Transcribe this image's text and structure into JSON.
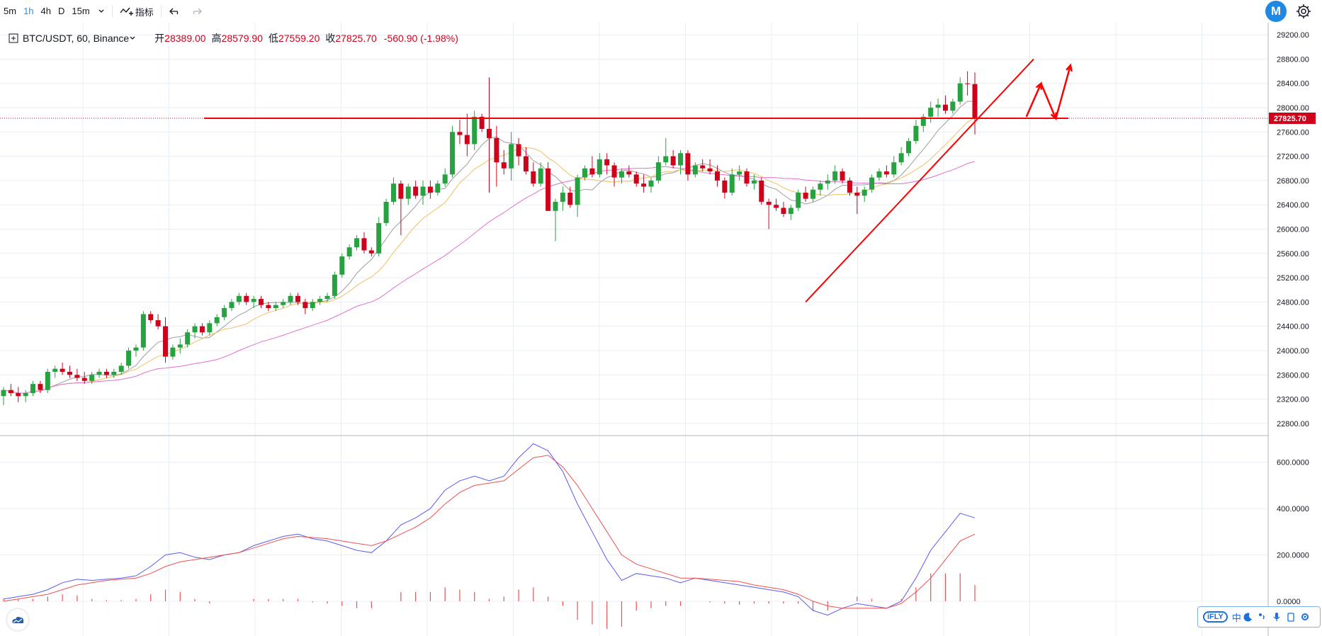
{
  "toolbar": {
    "timeframes": [
      "5m",
      "1h",
      "4h",
      "D",
      "15m"
    ],
    "active_timeframe": "1h",
    "chevron": "chevron-down-icon",
    "indicator_label": "指标",
    "undo": "undo-icon",
    "redo": "redo-icon",
    "settings": "gear-icon"
  },
  "logo_letter": "M",
  "legend": {
    "symbol": "BTC/USDT, 60, Binance",
    "open_label": "开",
    "open": "28389.00",
    "high_label": "高",
    "high": "28579.90",
    "low_label": "低",
    "low": "27559.20",
    "close_label": "收",
    "close": "27825.70",
    "change": "-560.90 (-1.98%)"
  },
  "ifly": {
    "logo": "iFLY",
    "lang": "中"
  },
  "colors": {
    "up": "#26a240",
    "down": "#d0021b",
    "ma_fast": "#f0c060",
    "ma_slow": "#e070d0",
    "ma_gray": "#9e9e9e",
    "macd_line": "#5b5bf0",
    "signal_line": "#f05050",
    "drawing": "#ff0000",
    "grid": "#e8eef5"
  },
  "chart_data": [
    {
      "type": "candlestick",
      "title": "BTC/USDT, 60, Binance",
      "ylim": [
        22600,
        29400
      ],
      "y_ticks": [
        "29200.00",
        "28800.00",
        "28400.00",
        "28000.00",
        "27600.00",
        "27200.00",
        "26800.00",
        "26400.00",
        "26000.00",
        "25600.00",
        "25200.00",
        "24800.00",
        "24400.00",
        "24000.00",
        "23600.00",
        "23200.00",
        "22800.00"
      ],
      "last_price": "27825.70",
      "horizontal_line": 27825.7,
      "trendline": [
        [
          109,
          24800
        ],
        [
          140,
          28800
        ]
      ],
      "projection_arrows": [
        [
          [
            139,
            27850
          ],
          [
            141,
            28400
          ],
          [
            143,
            27820
          ],
          [
            145,
            28700
          ]
        ]
      ],
      "candles": [
        [
          23250,
          23400,
          23100,
          23350
        ],
        [
          23350,
          23450,
          23250,
          23300
        ],
        [
          23300,
          23400,
          23150,
          23250
        ],
        [
          23250,
          23350,
          23150,
          23300
        ],
        [
          23300,
          23500,
          23250,
          23450
        ],
        [
          23450,
          23500,
          23300,
          23350
        ],
        [
          23350,
          23700,
          23300,
          23650
        ],
        [
          23650,
          23750,
          23550,
          23700
        ],
        [
          23700,
          23800,
          23600,
          23650
        ],
        [
          23650,
          23750,
          23550,
          23600
        ],
        [
          23600,
          23700,
          23500,
          23550
        ],
        [
          23550,
          23650,
          23450,
          23500
        ],
        [
          23500,
          23650,
          23450,
          23600
        ],
        [
          23600,
          23700,
          23550,
          23650
        ],
        [
          23650,
          23700,
          23550,
          23600
        ],
        [
          23600,
          23700,
          23550,
          23650
        ],
        [
          23650,
          23800,
          23600,
          23750
        ],
        [
          23750,
          24050,
          23700,
          24000
        ],
        [
          24000,
          24100,
          23900,
          24050
        ],
        [
          24050,
          24650,
          24000,
          24600
        ],
        [
          24600,
          24650,
          24450,
          24500
        ],
        [
          24500,
          24600,
          24350,
          24400
        ],
        [
          24400,
          24550,
          23800,
          23900
        ],
        [
          23900,
          24100,
          23850,
          24050
        ],
        [
          24050,
          24200,
          23950,
          24100
        ],
        [
          24100,
          24350,
          24050,
          24300
        ],
        [
          24300,
          24450,
          24200,
          24400
        ],
        [
          24400,
          24450,
          24250,
          24300
        ],
        [
          24300,
          24500,
          24250,
          24450
        ],
        [
          24450,
          24600,
          24400,
          24550
        ],
        [
          24550,
          24750,
          24500,
          24700
        ],
        [
          24700,
          24850,
          24650,
          24800
        ],
        [
          24800,
          24950,
          24750,
          24900
        ],
        [
          24900,
          24950,
          24750,
          24800
        ],
        [
          24800,
          24900,
          24700,
          24850
        ],
        [
          24850,
          24900,
          24700,
          24750
        ],
        [
          24750,
          24800,
          24650,
          24700
        ],
        [
          24700,
          24800,
          24650,
          24750
        ],
        [
          24750,
          24850,
          24700,
          24800
        ],
        [
          24800,
          24950,
          24750,
          24900
        ],
        [
          24900,
          24950,
          24750,
          24800
        ],
        [
          24800,
          24850,
          24600,
          24700
        ],
        [
          24700,
          24850,
          24650,
          24800
        ],
        [
          24800,
          24900,
          24750,
          24850
        ],
        [
          24850,
          24950,
          24800,
          24900
        ],
        [
          24900,
          25300,
          24850,
          25250
        ],
        [
          25250,
          25600,
          25200,
          25550
        ],
        [
          25550,
          25750,
          25500,
          25700
        ],
        [
          25700,
          25900,
          25650,
          25850
        ],
        [
          25850,
          25950,
          25600,
          25650
        ],
        [
          25650,
          25700,
          25550,
          25600
        ],
        [
          25600,
          26200,
          25550,
          26100
        ],
        [
          26100,
          26500,
          26050,
          26450
        ],
        [
          26450,
          26850,
          26400,
          26750
        ],
        [
          26750,
          26800,
          25900,
          26500
        ],
        [
          26500,
          26750,
          26400,
          26700
        ],
        [
          26700,
          26800,
          26500,
          26550
        ],
        [
          26550,
          26800,
          26400,
          26700
        ],
        [
          26700,
          26800,
          26500,
          26600
        ],
        [
          26600,
          26800,
          26550,
          26750
        ],
        [
          26750,
          27000,
          26700,
          26900
        ],
        [
          26900,
          27700,
          26850,
          27600
        ],
        [
          27600,
          27800,
          27400,
          27550
        ],
        [
          27550,
          27900,
          27200,
          27400
        ],
        [
          27400,
          27950,
          27300,
          27850
        ],
        [
          27850,
          27900,
          27600,
          27650
        ],
        [
          27650,
          28500,
          26600,
          27500
        ],
        [
          27500,
          27700,
          26700,
          27100
        ],
        [
          27100,
          27300,
          26900,
          27000
        ],
        [
          27000,
          27600,
          26800,
          27400
        ],
        [
          27400,
          27500,
          27050,
          27200
        ],
        [
          27200,
          27350,
          26900,
          26950
        ],
        [
          26950,
          27100,
          26700,
          26750
        ],
        [
          26750,
          27100,
          26700,
          27000
        ],
        [
          27000,
          27100,
          26300,
          26300
        ],
        [
          26300,
          26500,
          25800,
          26450
        ],
        [
          26450,
          26700,
          26300,
          26600
        ],
        [
          26600,
          26700,
          26350,
          26400
        ],
        [
          26400,
          26900,
          26200,
          26850
        ],
        [
          26850,
          27050,
          26800,
          27000
        ],
        [
          27000,
          27200,
          26850,
          26900
        ],
        [
          26900,
          27250,
          26850,
          27150
        ],
        [
          27150,
          27250,
          26900,
          27050
        ],
        [
          27050,
          27100,
          26700,
          26850
        ],
        [
          26850,
          27000,
          26750,
          26950
        ],
        [
          26950,
          27050,
          26850,
          26900
        ],
        [
          26900,
          26950,
          26700,
          26750
        ],
        [
          26750,
          26900,
          26600,
          26700
        ],
        [
          26700,
          26850,
          26600,
          26800
        ],
        [
          26800,
          27200,
          26750,
          27100
        ],
        [
          27100,
          27500,
          27050,
          27200
        ],
        [
          27200,
          27300,
          27000,
          27050
        ],
        [
          27050,
          27300,
          26900,
          27250
        ],
        [
          27250,
          27300,
          26800,
          26900
        ],
        [
          26900,
          27100,
          26850,
          27050
        ],
        [
          27050,
          27150,
          26950,
          27000
        ],
        [
          27000,
          27150,
          26900,
          26950
        ],
        [
          26950,
          27050,
          26700,
          26800
        ],
        [
          26800,
          26850,
          26500,
          26600
        ],
        [
          26600,
          27000,
          26550,
          26900
        ],
        [
          26900,
          27050,
          26800,
          26950
        ],
        [
          26950,
          27000,
          26700,
          26750
        ],
        [
          26750,
          26900,
          26650,
          26800
        ],
        [
          26800,
          26850,
          26400,
          26450
        ],
        [
          26450,
          26500,
          26000,
          26400
        ],
        [
          26400,
          26500,
          26300,
          26350
        ],
        [
          26350,
          26450,
          26200,
          26250
        ],
        [
          26250,
          26400,
          26150,
          26350
        ],
        [
          26350,
          26650,
          26300,
          26600
        ],
        [
          26600,
          26700,
          26450,
          26500
        ],
        [
          26500,
          26700,
          26450,
          26650
        ],
        [
          26650,
          26800,
          26550,
          26750
        ],
        [
          26750,
          26900,
          26650,
          26800
        ],
        [
          26800,
          27050,
          26750,
          26950
        ],
        [
          26950,
          27000,
          26750,
          26800
        ],
        [
          26800,
          26850,
          26550,
          26600
        ],
        [
          26600,
          26700,
          26250,
          26550
        ],
        [
          26550,
          26700,
          26450,
          26650
        ],
        [
          26650,
          26900,
          26600,
          26850
        ],
        [
          26850,
          27000,
          26800,
          26950
        ],
        [
          26950,
          27050,
          26850,
          26900
        ],
        [
          26900,
          27200,
          26850,
          27100
        ],
        [
          27100,
          27350,
          27050,
          27250
        ],
        [
          27250,
          27500,
          27200,
          27450
        ],
        [
          27450,
          27800,
          27400,
          27700
        ],
        [
          27700,
          27900,
          27600,
          27850
        ],
        [
          27850,
          28100,
          27750,
          28000
        ],
        [
          28000,
          28150,
          27850,
          28050
        ],
        [
          28050,
          28200,
          27900,
          27950
        ],
        [
          27950,
          28150,
          27900,
          28100
        ],
        [
          28100,
          28500,
          28050,
          28400
        ],
        [
          28400,
          28600,
          28200,
          28389
        ],
        [
          28389,
          28580,
          27559,
          27826
        ]
      ]
    },
    {
      "type": "line",
      "title": "MACD",
      "ylim": [
        -150,
        700
      ],
      "y_ticks": [
        "600.0000",
        "400.0000",
        "200.0000",
        "0.0000"
      ],
      "series": [
        {
          "values": [
            10,
            20,
            30,
            50,
            80,
            95,
            90,
            95,
            100,
            110,
            150,
            200,
            210,
            190,
            180,
            200,
            210,
            240,
            260,
            280,
            290,
            270,
            260,
            240,
            220,
            210,
            260,
            330,
            360,
            400,
            480,
            520,
            540,
            520,
            540,
            620,
            680,
            650,
            560,
            420,
            300,
            180,
            90,
            120,
            110,
            100,
            80,
            100,
            90,
            80,
            70,
            60,
            50,
            40,
            20,
            -40,
            -60,
            -30,
            -10,
            -20,
            -30,
            0,
            100,
            220,
            300,
            380,
            360
          ]
        },
        {
          "values": [
            0,
            10,
            20,
            30,
            50,
            70,
            80,
            90,
            95,
            100,
            120,
            150,
            170,
            180,
            190,
            200,
            210,
            230,
            250,
            270,
            280,
            275,
            270,
            260,
            250,
            240,
            260,
            290,
            320,
            360,
            420,
            470,
            500,
            510,
            520,
            570,
            620,
            630,
            580,
            500,
            400,
            300,
            200,
            160,
            140,
            120,
            100,
            100,
            95,
            90,
            85,
            70,
            60,
            50,
            30,
            0,
            -20,
            -30,
            -30,
            -30,
            -30,
            -10,
            40,
            100,
            180,
            260,
            290
          ]
        }
      ],
      "histogram": [
        10,
        10,
        10,
        20,
        30,
        25,
        10,
        5,
        5,
        10,
        30,
        50,
        40,
        10,
        -10,
        0,
        0,
        10,
        10,
        10,
        10,
        -5,
        -10,
        -20,
        -30,
        -30,
        0,
        40,
        40,
        40,
        60,
        50,
        40,
        10,
        20,
        50,
        60,
        20,
        -20,
        -80,
        -100,
        -120,
        -110,
        -40,
        -30,
        -20,
        -20,
        0,
        -5,
        -10,
        -15,
        -10,
        -10,
        -10,
        -10,
        -40,
        -40,
        0,
        20,
        10,
        0,
        10,
        60,
        120,
        120,
        120,
        70
      ]
    }
  ]
}
